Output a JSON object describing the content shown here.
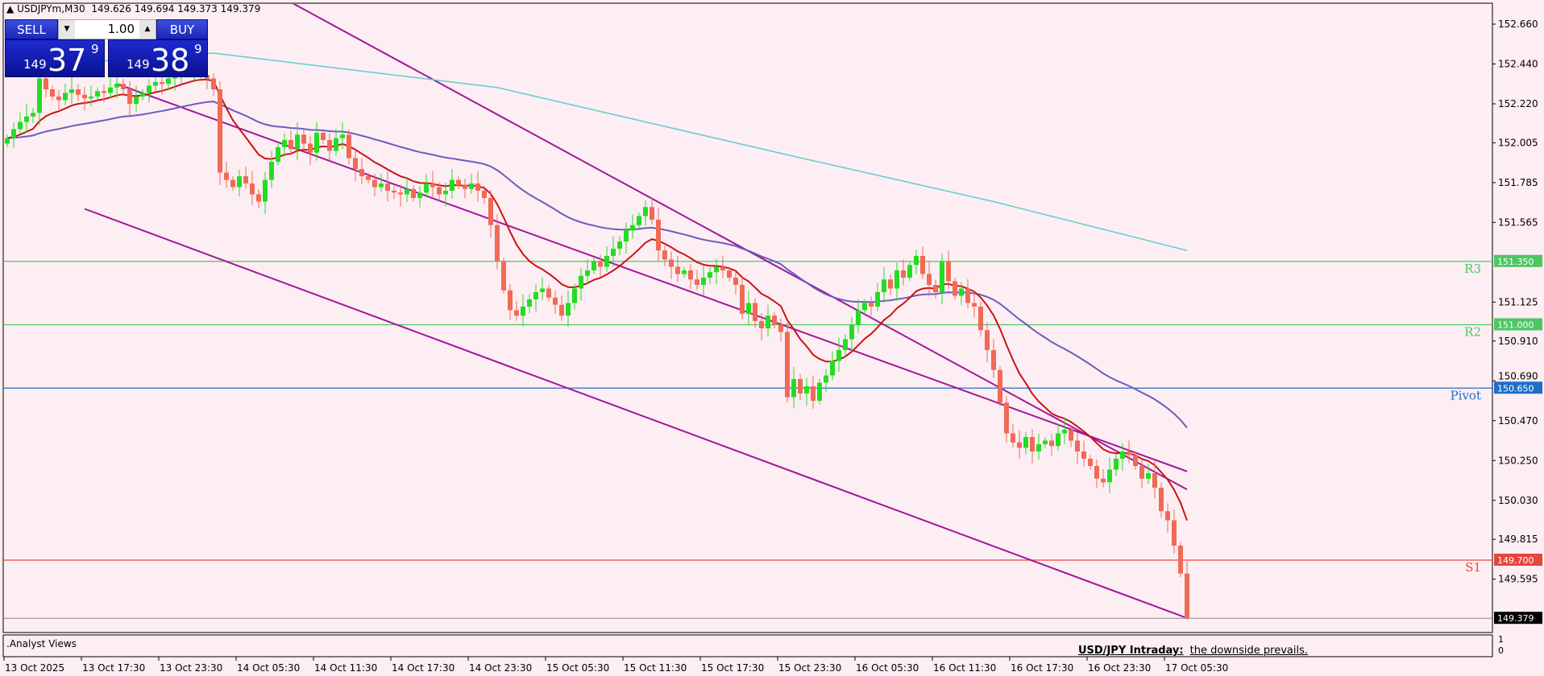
{
  "header": {
    "symbol": "USDJPYm,M30",
    "ohlc": "149.626 149.694 149.373 149.379"
  },
  "trade_panel": {
    "sell_label": "SELL",
    "buy_label": "BUY",
    "volume": "1.00",
    "sell_price": {
      "small": "149",
      "big": "37",
      "sup": "9"
    },
    "buy_price": {
      "small": "149",
      "big": "38",
      "sup": "9"
    }
  },
  "subwindow": {
    "title": ".Analyst Views",
    "headline": "USD/JPY Intraday:",
    "text": "the downside prevails.",
    "scale_top": "1",
    "scale_bottom": "0"
  },
  "chart_data": {
    "type": "candlestick",
    "symbol": "USDJPYm",
    "timeframe": "M30",
    "ylim": [
      149.28,
      152.78
    ],
    "y_ticks": [
      "152.660",
      "152.440",
      "152.220",
      "152.005",
      "151.785",
      "151.565",
      "151.125",
      "150.910",
      "150.690",
      "150.470",
      "150.250",
      "150.030",
      "149.815",
      "149.595"
    ],
    "x_tick_labels": [
      "13 Oct 2025",
      "13 Oct 17:30",
      "13 Oct 23:30",
      "14 Oct 05:30",
      "14 Oct 11:30",
      "14 Oct 17:30",
      "14 Oct 23:30",
      "15 Oct 05:30",
      "15 Oct 11:30",
      "15 Oct 17:30",
      "15 Oct 23:30",
      "16 Oct 05:30",
      "16 Oct 11:30",
      "16 Oct 17:30",
      "16 Oct 23:30",
      "17 Oct 05:30"
    ],
    "bars_per_x_tick": 12,
    "closes": [
      152.03,
      152.08,
      152.12,
      152.15,
      152.17,
      152.36,
      152.3,
      152.26,
      152.24,
      152.28,
      152.3,
      152.27,
      152.25,
      152.26,
      152.29,
      152.28,
      152.31,
      152.33,
      152.3,
      152.22,
      152.26,
      152.28,
      152.32,
      152.34,
      152.33,
      152.36,
      152.38,
      152.4,
      152.39,
      152.41,
      152.38,
      152.36,
      152.3,
      151.84,
      151.8,
      151.76,
      151.82,
      151.78,
      151.72,
      151.68,
      151.8,
      151.9,
      151.98,
      152.02,
      151.97,
      152.05,
      152.0,
      151.95,
      152.06,
      152.02,
      151.96,
      152.03,
      152.05,
      151.92,
      151.86,
      151.82,
      151.8,
      151.76,
      151.78,
      151.74,
      151.73,
      151.72,
      151.75,
      151.7,
      151.73,
      151.78,
      151.76,
      151.72,
      151.74,
      151.8,
      151.77,
      151.75,
      151.78,
      151.74,
      151.7,
      151.55,
      151.35,
      151.19,
      151.08,
      151.05,
      151.1,
      151.14,
      151.18,
      151.2,
      151.15,
      151.11,
      151.05,
      151.12,
      151.2,
      151.27,
      151.3,
      151.35,
      151.32,
      151.38,
      151.42,
      151.46,
      151.52,
      151.55,
      151.6,
      151.65,
      151.58,
      151.41,
      151.36,
      151.32,
      151.28,
      151.3,
      151.25,
      151.22,
      151.26,
      151.29,
      151.32,
      151.3,
      151.26,
      151.22,
      151.06,
      151.12,
      151.02,
      150.98,
      151.05,
      151.0,
      150.96,
      150.6,
      150.7,
      150.62,
      150.66,
      150.58,
      150.68,
      150.72,
      150.8,
      150.86,
      150.92,
      151.0,
      151.08,
      151.12,
      151.1,
      151.18,
      151.25,
      151.2,
      151.3,
      151.26,
      151.33,
      151.38,
      151.28,
      151.22,
      151.18,
      151.35,
      151.24,
      151.16,
      151.2,
      151.12,
      151.1,
      150.97,
      150.86,
      150.75,
      150.57,
      150.4,
      150.35,
      150.32,
      150.38,
      150.3,
      150.34,
      150.36,
      150.33,
      150.4,
      150.42,
      150.36,
      150.3,
      150.26,
      150.22,
      150.15,
      150.13,
      150.2,
      150.26,
      150.3,
      150.28,
      150.22,
      150.15,
      150.18,
      150.1,
      149.97,
      149.92,
      149.78,
      149.626,
      149.379
    ],
    "last_bar": {
      "open": 149.626,
      "high": 149.694,
      "low": 149.373,
      "close": 149.379
    },
    "levels": [
      {
        "label": "R3",
        "value": "151.350",
        "color": "#4cc764"
      },
      {
        "label": "R2",
        "value": "151.000",
        "color": "#4cc764"
      },
      {
        "label": "Pivot",
        "value": "150.650",
        "color": "#1f6fc9"
      },
      {
        "label": "S1",
        "value": "149.700",
        "color": "#e8453c"
      }
    ],
    "current_price": "149.379",
    "long_ma": [
      [
        0,
        152.42
      ],
      [
        32,
        152.5
      ],
      [
        76,
        152.31
      ],
      [
        122,
        151.93
      ],
      [
        153,
        151.68
      ],
      [
        183,
        151.41
      ]
    ],
    "channel": {
      "upper": [
        [
          43,
          152.8
        ],
        [
          183,
          150.09
        ]
      ],
      "middle": [
        [
          17,
          152.33
        ],
        [
          183,
          150.19
        ]
      ],
      "lower": [
        [
          12,
          151.64
        ],
        [
          183,
          149.38
        ]
      ]
    },
    "colors": {
      "background": "#fdeef3",
      "bull": "#22dd22",
      "bear": "#f06a55",
      "fast_ma": "#c81414",
      "mid_ma": "#6a5cc0",
      "long_ma": "#5ccfcf",
      "channel": "#a0189a"
    }
  }
}
